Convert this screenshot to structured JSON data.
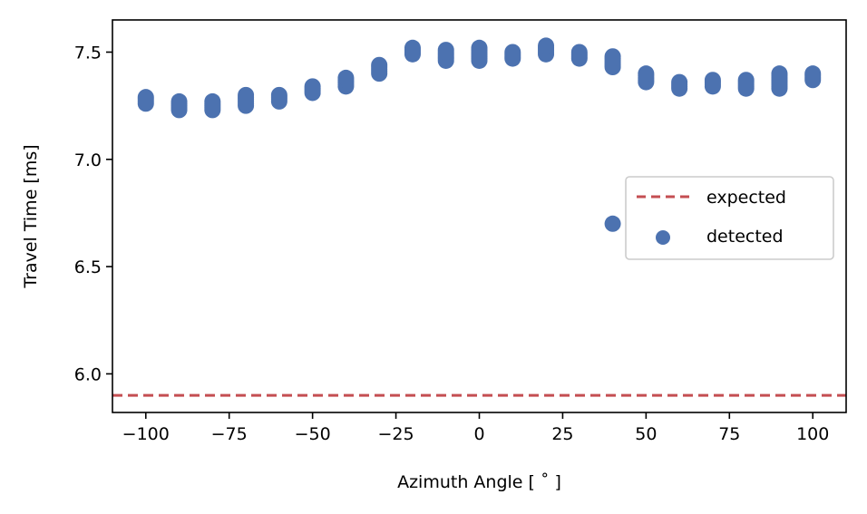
{
  "chart_data": {
    "type": "scatter",
    "xlabel": "Azimuth Angle [$^\\circ$]",
    "xlabel_display": "Azimuth Angle [ ˚ ]",
    "ylabel": "Travel Time [ms]",
    "xlim": [
      -110,
      110
    ],
    "ylim": [
      5.82,
      7.65
    ],
    "xticks": [
      -100,
      -75,
      -50,
      -25,
      0,
      25,
      50,
      75,
      100
    ],
    "xtick_labels": [
      "−100",
      "−75",
      "−50",
      "−25",
      "0",
      "25",
      "50",
      "75",
      "100"
    ],
    "yticks": [
      6.0,
      6.5,
      7.0,
      7.5
    ],
    "ytick_labels": [
      "6.0",
      "6.5",
      "7.0",
      "7.5"
    ],
    "grid": false,
    "legend": {
      "position": "center-right",
      "entries": [
        "expected",
        "detected"
      ]
    },
    "colors": {
      "expected": "#c44e52",
      "detected": "#4c72b0"
    },
    "series": [
      {
        "name": "expected",
        "kind": "hline",
        "y": 5.9
      },
      {
        "name": "detected",
        "kind": "scatter",
        "points": [
          [
            -100,
            7.26
          ],
          [
            -100,
            7.27
          ],
          [
            -100,
            7.28
          ],
          [
            -100,
            7.29
          ],
          [
            -90,
            7.23
          ],
          [
            -90,
            7.24
          ],
          [
            -90,
            7.25
          ],
          [
            -90,
            7.26
          ],
          [
            -90,
            7.27
          ],
          [
            -80,
            7.23
          ],
          [
            -80,
            7.24
          ],
          [
            -80,
            7.25
          ],
          [
            -80,
            7.26
          ],
          [
            -80,
            7.27
          ],
          [
            -70,
            7.25
          ],
          [
            -70,
            7.26
          ],
          [
            -70,
            7.27
          ],
          [
            -70,
            7.28
          ],
          [
            -70,
            7.29
          ],
          [
            -70,
            7.3
          ],
          [
            -60,
            7.27
          ],
          [
            -60,
            7.28
          ],
          [
            -60,
            7.29
          ],
          [
            -60,
            7.3
          ],
          [
            -50,
            7.31
          ],
          [
            -50,
            7.32
          ],
          [
            -50,
            7.33
          ],
          [
            -50,
            7.34
          ],
          [
            -40,
            7.34
          ],
          [
            -40,
            7.35
          ],
          [
            -40,
            7.36
          ],
          [
            -40,
            7.37
          ],
          [
            -40,
            7.38
          ],
          [
            -30,
            7.4
          ],
          [
            -30,
            7.41
          ],
          [
            -30,
            7.42
          ],
          [
            -30,
            7.43
          ],
          [
            -30,
            7.44
          ],
          [
            -20,
            7.49
          ],
          [
            -20,
            7.5
          ],
          [
            -20,
            7.51
          ],
          [
            -20,
            7.52
          ],
          [
            -10,
            7.46
          ],
          [
            -10,
            7.47
          ],
          [
            -10,
            7.48
          ],
          [
            -10,
            7.49
          ],
          [
            -10,
            7.5
          ],
          [
            -10,
            7.51
          ],
          [
            0,
            7.46
          ],
          [
            0,
            7.47
          ],
          [
            0,
            7.48
          ],
          [
            0,
            7.49
          ],
          [
            0,
            7.5
          ],
          [
            0,
            7.51
          ],
          [
            0,
            7.52
          ],
          [
            10,
            7.47
          ],
          [
            10,
            7.48
          ],
          [
            10,
            7.49
          ],
          [
            10,
            7.5
          ],
          [
            20,
            7.49
          ],
          [
            20,
            7.5
          ],
          [
            20,
            7.51
          ],
          [
            20,
            7.52
          ],
          [
            20,
            7.53
          ],
          [
            30,
            7.47
          ],
          [
            30,
            7.48
          ],
          [
            30,
            7.49
          ],
          [
            30,
            7.5
          ],
          [
            40,
            7.43
          ],
          [
            40,
            7.44
          ],
          [
            40,
            7.45
          ],
          [
            40,
            7.46
          ],
          [
            40,
            7.47
          ],
          [
            40,
            7.48
          ],
          [
            40,
            6.7
          ],
          [
            50,
            7.36
          ],
          [
            50,
            7.37
          ],
          [
            50,
            7.38
          ],
          [
            50,
            7.39
          ],
          [
            50,
            7.4
          ],
          [
            60,
            7.33
          ],
          [
            60,
            7.34
          ],
          [
            60,
            7.35
          ],
          [
            60,
            7.36
          ],
          [
            70,
            7.34
          ],
          [
            70,
            7.35
          ],
          [
            70,
            7.36
          ],
          [
            70,
            7.37
          ],
          [
            80,
            7.33
          ],
          [
            80,
            7.34
          ],
          [
            80,
            7.35
          ],
          [
            80,
            7.36
          ],
          [
            80,
            7.37
          ],
          [
            90,
            7.33
          ],
          [
            90,
            7.34
          ],
          [
            90,
            7.35
          ],
          [
            90,
            7.36
          ],
          [
            90,
            7.37
          ],
          [
            90,
            7.38
          ],
          [
            90,
            7.39
          ],
          [
            90,
            7.4
          ],
          [
            100,
            7.37
          ],
          [
            100,
            7.38
          ],
          [
            100,
            7.39
          ],
          [
            100,
            7.4
          ]
        ]
      }
    ]
  }
}
